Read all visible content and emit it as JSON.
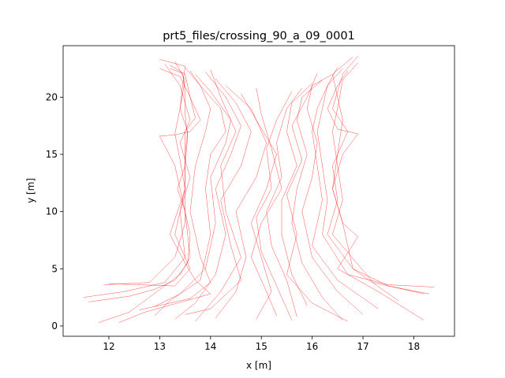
{
  "chart_data": {
    "type": "line",
    "title": "prt5_files/crossing_90_a_09_0001",
    "xlabel": "x [m]",
    "ylabel": "y [m]",
    "xlim": [
      11.1,
      18.8
    ],
    "ylim": [
      -0.9,
      24.5
    ],
    "xticks": [
      12,
      13,
      14,
      15,
      16,
      17,
      18
    ],
    "yticks": [
      0,
      5,
      10,
      15,
      20
    ],
    "grid": false,
    "legend": "none",
    "line_color": "#ff0000",
    "line_width": 0.5,
    "line_opacity": 0.7,
    "series": [
      {
        "x": [
          13.2,
          13.45,
          13.5,
          13.5,
          13.55,
          13.5,
          13.35,
          13.5,
          13.6,
          13.55,
          13.3,
          12.9,
          12.4,
          11.6
        ],
        "y": [
          22.5,
          22.1,
          20.5,
          18.5,
          16.5,
          14.0,
          12.0,
          10.0,
          8.0,
          5.5,
          4.0,
          3.2,
          2.6,
          2.1
        ]
      },
      {
        "x": [
          13.0,
          13.5,
          13.45,
          13.4,
          13.3,
          13.4,
          13.5,
          13.5,
          13.3,
          12.8,
          11.9
        ],
        "y": [
          23.3,
          22.7,
          21.0,
          19.0,
          16.8,
          14.5,
          12.0,
          9.0,
          6.0,
          3.8,
          3.6
        ]
      },
      {
        "x": [
          13.0,
          13.4,
          13.6,
          13.8,
          13.6,
          13.3,
          13.0,
          13.3,
          13.5,
          13.6,
          13.4,
          12.4,
          11.8
        ],
        "y": [
          22.5,
          21.8,
          20.0,
          18.0,
          17.0,
          16.7,
          16.6,
          14.0,
          10.0,
          6.0,
          4.5,
          1.2,
          0.3
        ]
      },
      {
        "x": [
          13.3,
          13.5,
          13.4,
          13.55,
          13.5,
          13.5,
          13.3,
          13.6,
          13.3,
          12.0
        ],
        "y": [
          23.1,
          21.5,
          19.0,
          17.0,
          15.0,
          12.0,
          8.0,
          5.0,
          3.5,
          3.7
        ]
      },
      {
        "x": [
          13.2,
          13.5,
          13.6,
          13.7,
          13.5,
          13.5,
          13.2,
          13.5,
          13.7,
          14.0,
          12.7,
          12.2
        ],
        "y": [
          22.8,
          22.0,
          20.0,
          18.2,
          17.0,
          12.0,
          8.0,
          5.5,
          4.0,
          2.8,
          1.2,
          0.3
        ]
      },
      {
        "x": [
          13.6,
          13.8,
          14.0,
          13.9,
          13.7,
          13.6,
          13.8,
          14.0,
          13.6,
          12.6
        ],
        "y": [
          22.3,
          21.0,
          19.0,
          17.0,
          14.0,
          10.0,
          6.0,
          3.8,
          2.4,
          1.4
        ]
      },
      {
        "x": [
          13.5,
          13.8,
          14.2,
          14.3,
          14.0,
          13.9,
          14.0,
          13.8,
          13.2,
          12.9
        ],
        "y": [
          22.6,
          21.0,
          19.0,
          17.0,
          15.0,
          12.0,
          8.0,
          4.0,
          2.2,
          0.9
        ]
      },
      {
        "x": [
          13.7,
          14.0,
          14.4,
          14.3,
          14.0,
          14.1,
          13.9,
          13.4,
          12.9
        ],
        "y": [
          22.0,
          20.5,
          18.0,
          16.0,
          13.0,
          9.0,
          5.0,
          2.8,
          1.7
        ]
      },
      {
        "x": [
          13.9,
          14.3,
          14.6,
          14.4,
          14.1,
          14.3,
          14.1,
          13.7,
          13.3
        ],
        "y": [
          22.2,
          20.0,
          17.5,
          15.0,
          12.0,
          8.0,
          4.5,
          2.0,
          0.6
        ]
      },
      {
        "x": [
          14.1,
          14.5,
          14.8,
          14.6,
          14.2,
          14.4,
          14.6,
          14.0,
          13.5
        ],
        "y": [
          21.6,
          19.5,
          17.0,
          14.0,
          11.0,
          7.0,
          4.0,
          1.5,
          1.0
        ]
      },
      {
        "x": [
          14.3,
          14.8,
          15.1,
          14.9,
          14.5,
          14.7,
          14.5,
          14.1
        ],
        "y": [
          21.0,
          19.0,
          16.0,
          13.0,
          10.0,
          6.0,
          3.0,
          0.7
        ]
      },
      {
        "x": [
          14.6,
          14.9,
          15.3,
          15.1,
          14.8,
          15.0,
          15.2,
          14.9
        ],
        "y": [
          20.3,
          18.0,
          15.0,
          12.0,
          9.0,
          6.0,
          3.0,
          0.6
        ]
      },
      {
        "x": [
          14.9,
          15.0,
          15.2,
          15.4,
          15.0,
          14.8,
          15.1,
          15.3
        ],
        "y": [
          20.8,
          18.5,
          15.5,
          12.0,
          9.0,
          6.0,
          3.0,
          0.9
        ]
      },
      {
        "x": [
          16.5,
          16.3,
          16.2,
          16.1,
          16.2,
          16.3,
          16.2,
          16.7,
          17.5,
          18.4
        ],
        "y": [
          22.6,
          21.0,
          19.0,
          17.0,
          14.0,
          11.0,
          8.0,
          4.5,
          3.6,
          3.4
        ]
      },
      {
        "x": [
          16.9,
          16.6,
          16.5,
          16.4,
          16.5,
          16.6,
          16.4,
          17.2,
          18.2
        ],
        "y": [
          23.0,
          21.5,
          19.0,
          17.0,
          14.0,
          11.0,
          8.0,
          3.8,
          2.8
        ]
      },
      {
        "x": [
          16.7,
          16.5,
          16.3,
          16.5,
          16.9,
          16.6,
          16.4,
          16.6,
          16.9,
          16.5,
          17.3,
          18.2
        ],
        "y": [
          22.3,
          21.0,
          19.0,
          17.2,
          16.8,
          15.0,
          12.0,
          9.0,
          7.8,
          5.0,
          3.0,
          0.5
        ]
      },
      {
        "x": [
          16.8,
          16.4,
          16.5,
          16.6,
          16.5,
          16.4,
          16.6,
          16.8,
          17.7
        ],
        "y": [
          23.5,
          22.0,
          20.0,
          18.0,
          15.0,
          12.0,
          9.0,
          5.0,
          2.2
        ]
      },
      {
        "x": [
          16.6,
          16.3,
          16.1,
          16.0,
          16.1,
          16.2,
          16.0,
          16.5,
          17.3
        ],
        "y": [
          22.5,
          21.0,
          19.0,
          17.0,
          14.0,
          11.0,
          7.0,
          4.0,
          1.5
        ]
      },
      {
        "x": [
          16.4,
          16.0,
          15.9,
          16.1,
          16.0,
          15.8,
          16.0,
          16.5,
          17.0
        ],
        "y": [
          22.0,
          21.0,
          19.0,
          16.0,
          13.0,
          10.0,
          6.0,
          3.0,
          1.0
        ]
      },
      {
        "x": [
          16.2,
          15.8,
          15.7,
          15.9,
          15.7,
          15.6,
          15.8,
          16.2,
          16.6
        ],
        "y": [
          21.5,
          20.0,
          18.0,
          15.0,
          12.0,
          9.0,
          5.5,
          2.5,
          0.5
        ]
      },
      {
        "x": [
          16.0,
          15.6,
          15.5,
          15.7,
          15.4,
          15.4,
          15.6,
          15.9
        ],
        "y": [
          21.2,
          19.5,
          17.0,
          14.0,
          11.0,
          8.0,
          4.5,
          1.8
        ]
      },
      {
        "x": [
          15.8,
          15.5,
          15.3,
          15.4,
          15.1,
          15.2,
          15.5,
          15.7
        ],
        "y": [
          20.8,
          19.0,
          16.0,
          13.0,
          10.0,
          7.0,
          4.0,
          0.8
        ]
      },
      {
        "x": [
          15.6,
          15.3,
          15.1,
          15.2,
          14.9,
          15.0,
          15.3,
          15.6
        ],
        "y": [
          20.5,
          18.0,
          15.5,
          12.0,
          9.5,
          6.5,
          3.5,
          0.5
        ]
      },
      {
        "x": [
          16.9,
          16.6,
          16.4,
          16.7,
          16.4,
          16.5,
          16.3,
          16.8,
          17.5,
          18.3
        ],
        "y": [
          23.6,
          22.0,
          19.0,
          17.0,
          14.0,
          11.0,
          8.0,
          5.0,
          3.5,
          2.8
        ]
      },
      {
        "x": [
          13.1,
          13.4,
          13.6,
          13.4,
          13.6,
          13.4,
          13.5,
          13.1,
          12.3,
          11.5
        ],
        "y": [
          22.9,
          21.0,
          18.0,
          16.0,
          13.0,
          10.0,
          6.0,
          3.8,
          3.0,
          2.5
        ]
      },
      {
        "x": [
          14.0,
          14.2,
          14.5,
          14.2,
          14.3,
          14.6,
          14.2,
          13.7
        ],
        "y": [
          22.4,
          20.0,
          17.0,
          14.0,
          10.0,
          6.0,
          3.0,
          0.4
        ]
      },
      {
        "x": [
          16.1,
          15.9,
          15.6,
          15.8,
          15.5,
          15.7,
          15.5,
          16.0,
          16.7
        ],
        "y": [
          22.1,
          20.0,
          17.5,
          14.5,
          11.5,
          8.0,
          4.5,
          2.0,
          0.4
        ]
      }
    ]
  }
}
